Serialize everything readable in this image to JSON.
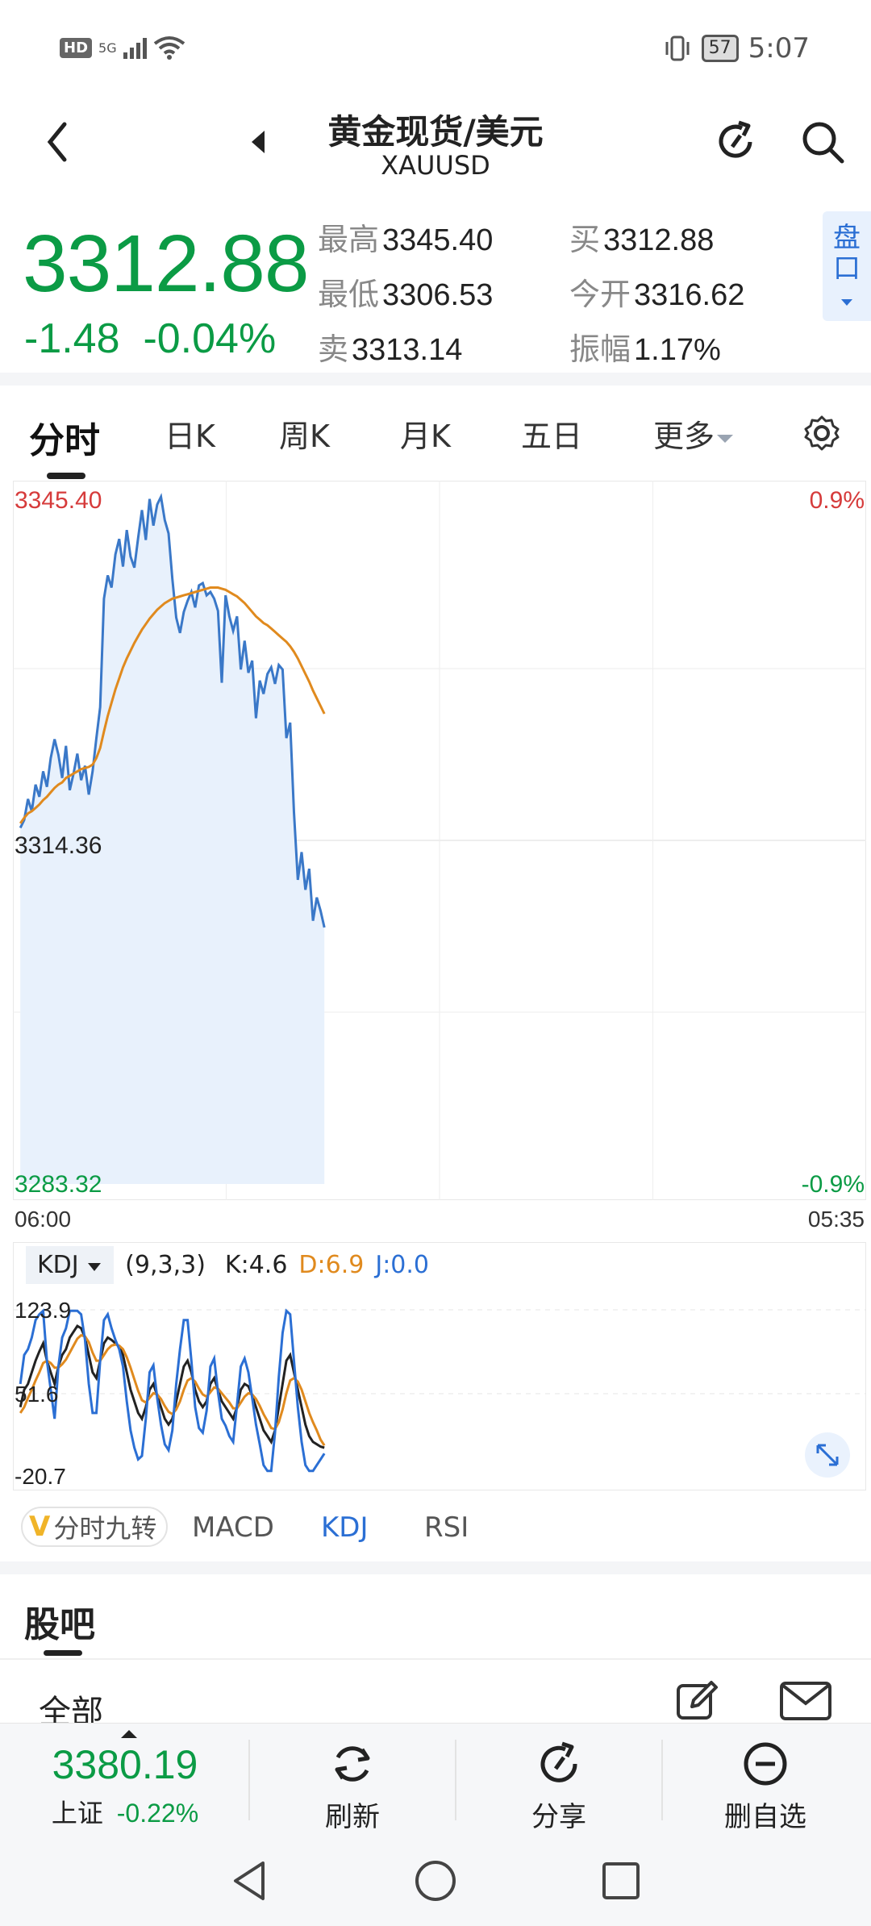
{
  "status_bar": {
    "left_badge": "HD",
    "network": "5G",
    "battery": "57",
    "time": "5:07"
  },
  "header": {
    "title": "黄金现货/美元",
    "subtitle": "XAUUSD"
  },
  "quote": {
    "price": "3312.88",
    "change": "-1.48",
    "change_pct": "-0.04%",
    "high_label": "最高",
    "high": "3345.40",
    "low_label": "最低",
    "low": "3306.53",
    "sell_label": "卖",
    "sell": "3313.14",
    "buy_label": "买",
    "buy": "3312.88",
    "open_label": "今开",
    "open": "3316.62",
    "amp_label": "振幅",
    "amp": "1.17%",
    "pankou": "盘口",
    "up_color": "#d63b3b",
    "down_color": "#0b9b45"
  },
  "tabs": [
    "分时",
    "日K",
    "周K",
    "月K",
    "五日",
    "更多"
  ],
  "chart_data": [
    {
      "type": "line",
      "title": "",
      "y_top_label": "3345.40",
      "y_mid_label": "3314.36",
      "y_bottom_label": "3283.32",
      "pct_top_label": "0.9%",
      "pct_bottom_label": "-0.9%",
      "x_start_label": "06:00",
      "x_end_label": "05:35",
      "ylim": [
        3283.32,
        3345.4
      ],
      "series": [
        {
          "color": "#3a78c8",
          "values": [
            3315.5,
            3316.2,
            3318.1,
            3317.0,
            3319.4,
            3318.3,
            3320.6,
            3319.2,
            3321.8,
            3323.5,
            3322.1,
            3320.0,
            3322.9,
            3318.9,
            3320.4,
            3322.2,
            3319.8,
            3321.1,
            3318.5,
            3320.6,
            3323.6,
            3326.4,
            3336.2,
            3338.3,
            3337.2,
            3340.2,
            3341.6,
            3339.1,
            3342.4,
            3340.0,
            3339.0,
            3341.7,
            3344.2,
            3341.5,
            3345.2,
            3342.8,
            3344.7,
            3345.4,
            3343.3,
            3342.1,
            3338.0,
            3334.5,
            3333.1,
            3335.0,
            3336.0,
            3336.8,
            3335.4,
            3337.4,
            3337.6,
            3336.5,
            3336.8,
            3336.2,
            3335.1,
            3328.6,
            3336.5,
            3334.6,
            3333.3,
            3334.6,
            3329.8,
            3332.4,
            3329.5,
            3330.6,
            3325.4,
            3328.8,
            3327.6,
            3329.4,
            3330.0,
            3328.5,
            3330.2,
            3329.8,
            3323.6,
            3325.0,
            3316.9,
            3310.8,
            3313.3,
            3309.9,
            3311.8,
            3307.1,
            3309.2,
            3308.0,
            3306.5
          ],
          "note_high": "3345.40"
        },
        {
          "color": "#e08a1e",
          "values": [
            3315.9,
            3316.4,
            3316.8,
            3317.0,
            3317.3,
            3317.6,
            3318.0,
            3318.3,
            3318.7,
            3319.1,
            3319.4,
            3319.6,
            3320.0,
            3320.2,
            3320.4,
            3320.6,
            3320.8,
            3320.9,
            3321.0,
            3321.2,
            3321.8,
            3322.7,
            3324.2,
            3325.6,
            3326.8,
            3328.0,
            3329.0,
            3330.0,
            3330.8,
            3331.5,
            3332.2,
            3332.8,
            3333.4,
            3333.9,
            3334.4,
            3334.8,
            3335.2,
            3335.5,
            3335.8,
            3336.0,
            3336.2,
            3336.3,
            3336.4,
            3336.5,
            3336.6,
            3336.7,
            3336.8,
            3336.9,
            3337.0,
            3337.1,
            3337.2,
            3337.2,
            3337.2,
            3337.1,
            3337.0,
            3336.8,
            3336.6,
            3336.4,
            3336.1,
            3335.8,
            3335.4,
            3335.0,
            3334.6,
            3334.3,
            3334.0,
            3333.8,
            3333.5,
            3333.2,
            3332.9,
            3332.6,
            3332.3,
            3331.9,
            3331.4,
            3330.8,
            3330.1,
            3329.4,
            3328.7,
            3327.9,
            3327.2,
            3326.5,
            3325.8
          ]
        }
      ]
    },
    {
      "type": "line",
      "title": "KDJ",
      "params": "(9,3,3)",
      "k_label": "K:4.6",
      "d_label": "D:6.9",
      "j_label": "J:0.0",
      "y_top_label": "123.9",
      "y_mid_label": "51.6",
      "y_bottom_label": "-20.7",
      "ylim": [
        -20.7,
        123.9
      ],
      "series": [
        {
          "name": "K",
          "color": "#222222",
          "values": [
            40,
            55,
            60,
            70,
            80,
            88,
            95,
            80,
            70,
            60,
            75,
            85,
            90,
            100,
            105,
            110,
            108,
            100,
            85,
            70,
            65,
            80,
            95,
            100,
            98,
            95,
            92,
            85,
            70,
            55,
            45,
            35,
            30,
            40,
            55,
            60,
            50,
            40,
            30,
            25,
            30,
            45,
            60,
            75,
            80,
            70,
            55,
            45,
            40,
            45,
            60,
            65,
            55,
            45,
            40,
            35,
            30,
            40,
            55,
            60,
            58,
            50,
            40,
            30,
            20,
            15,
            10,
            20,
            40,
            60,
            80,
            85,
            70,
            55,
            40,
            25,
            15,
            10,
            8,
            6,
            5
          ]
        },
        {
          "name": "D",
          "color": "#e08a1e",
          "values": [
            35,
            40,
            48,
            55,
            63,
            70,
            78,
            80,
            78,
            74,
            74,
            77,
            81,
            87,
            93,
            99,
            102,
            101,
            96,
            87,
            80,
            80,
            85,
            90,
            93,
            94,
            93,
            90,
            83,
            74,
            64,
            54,
            46,
            44,
            48,
            52,
            51,
            47,
            41,
            36,
            34,
            38,
            45,
            55,
            63,
            65,
            62,
            56,
            51,
            49,
            53,
            57,
            56,
            52,
            48,
            44,
            39,
            39,
            44,
            49,
            52,
            51,
            47,
            41,
            34,
            28,
            22,
            21,
            27,
            38,
            52,
            63,
            65,
            62,
            55,
            45,
            35,
            27,
            20,
            12,
            7
          ]
        },
        {
          "name": "J",
          "color": "#2b6fd4",
          "values": [
            60,
            85,
            90,
            100,
            115,
            120,
            123,
            80,
            55,
            30,
            75,
            100,
            108,
            123,
            123,
            123,
            120,
            98,
            60,
            35,
            35,
            80,
            115,
            120,
            108,
            98,
            90,
            75,
            45,
            20,
            5,
            -5,
            -2,
            30,
            70,
            76,
            48,
            25,
            8,
            3,
            20,
            60,
            90,
            115,
            115,
            80,
            40,
            22,
            18,
            37,
            75,
            82,
            53,
            30,
            24,
            15,
            10,
            42,
            75,
            82,
            70,
            48,
            25,
            8,
            -10,
            -15,
            -15,
            18,
            66,
            104,
            123,
            120,
            80,
            40,
            10,
            -10,
            -15,
            -15,
            -10,
            -5,
            0
          ]
        }
      ]
    }
  ],
  "kdj": {
    "selector": "KDJ",
    "params": "(9,3,3)",
    "k": "K:4.6",
    "d": "D:6.9",
    "j": "J:0.0",
    "top": "123.9",
    "mid": "51.6",
    "bottom": "-20.7"
  },
  "indicator_tabs": [
    "分时九转",
    "MACD",
    "KDJ",
    "RSI"
  ],
  "guba": {
    "title": "股吧",
    "filter": "全部"
  },
  "bottom_bar": {
    "index_price": "3380.19",
    "index_name": "上证",
    "index_change": "-0.22%",
    "refresh": "刷新",
    "share": "分享",
    "remove": "删自选"
  }
}
